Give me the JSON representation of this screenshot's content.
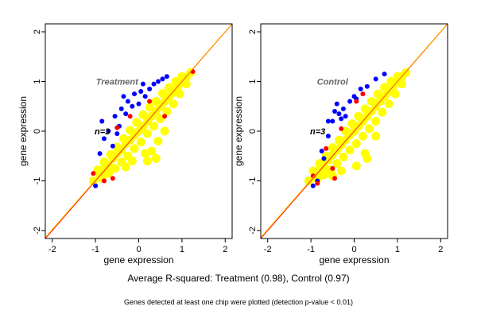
{
  "chart_data": [
    {
      "type": "scatter",
      "title": "Treatment",
      "annotation": "n=3",
      "xlabel": "gene expression",
      "ylabel": "gene expression",
      "xlim": [
        -2.16,
        2.16
      ],
      "ylim": [
        -2.16,
        2.16
      ],
      "xticks": [
        "-2",
        "-1",
        "0",
        "1",
        "2"
      ],
      "yticks": [
        "-2",
        "-1",
        "0",
        "1",
        "2"
      ],
      "grid": false,
      "colors": {
        "yellow": "#ffff00",
        "blue": "#0000ff",
        "red": "#ff0000",
        "identity_line": "#ff0000",
        "fit_line": "#ffcc00"
      },
      "series": [
        {
          "color": "#ffff00",
          "points": [
            [
              -1.05,
              -1.0
            ],
            [
              -0.9,
              -0.88
            ],
            [
              -0.8,
              -0.75
            ],
            [
              -0.7,
              -0.68
            ],
            [
              -0.6,
              -0.55
            ],
            [
              -0.5,
              -0.45
            ],
            [
              -0.4,
              -0.38
            ],
            [
              -0.3,
              -0.25
            ],
            [
              -0.2,
              -0.18
            ],
            [
              -0.1,
              -0.08
            ],
            [
              0,
              0
            ],
            [
              0.1,
              0.1
            ],
            [
              0.2,
              0.2
            ],
            [
              0.3,
              0.3
            ],
            [
              0.4,
              0.4
            ],
            [
              0.5,
              0.5
            ],
            [
              0.6,
              0.6
            ],
            [
              0.7,
              0.7
            ],
            [
              0.8,
              0.78
            ],
            [
              0.9,
              0.88
            ],
            [
              1.0,
              0.98
            ],
            [
              1.1,
              1.08
            ],
            [
              1.2,
              1.18
            ],
            [
              -0.95,
              -0.78
            ],
            [
              -0.8,
              -0.62
            ],
            [
              -0.65,
              -0.47
            ],
            [
              -0.5,
              -0.32
            ],
            [
              -0.35,
              -0.15
            ],
            [
              -0.2,
              0.02
            ],
            [
              -0.05,
              0.18
            ],
            [
              0.1,
              0.33
            ],
            [
              0.25,
              0.48
            ],
            [
              0.4,
              0.6
            ],
            [
              0.55,
              0.76
            ],
            [
              0.7,
              0.88
            ],
            [
              0.85,
              1.0
            ],
            [
              1.0,
              1.1
            ],
            [
              -0.85,
              -0.95
            ],
            [
              -0.7,
              -0.85
            ],
            [
              -0.55,
              -0.75
            ],
            [
              -0.4,
              -0.62
            ],
            [
              -0.25,
              -0.5
            ],
            [
              -0.1,
              -0.35
            ],
            [
              0.05,
              -0.22
            ],
            [
              0.2,
              -0.05
            ],
            [
              0.35,
              0.1
            ],
            [
              0.5,
              0.25
            ],
            [
              0.65,
              0.4
            ],
            [
              0.8,
              0.55
            ],
            [
              0.95,
              0.75
            ],
            [
              1.1,
              0.95
            ],
            [
              0.3,
              -0.4
            ],
            [
              0.4,
              -0.55
            ],
            [
              0.2,
              -0.6
            ],
            [
              0.6,
              0.0
            ],
            [
              0.15,
              -0.45
            ],
            [
              -0.3,
              -0.72
            ],
            [
              0.45,
              -0.2
            ],
            [
              -0.15,
              -0.6
            ]
          ]
        },
        {
          "color": "#0000ff",
          "points": [
            [
              -0.85,
              0.2
            ],
            [
              -0.8,
              -0.15
            ],
            [
              -0.7,
              0.0
            ],
            [
              -0.55,
              0.3
            ],
            [
              -0.45,
              0.1
            ],
            [
              -0.4,
              0.45
            ],
            [
              -0.3,
              0.35
            ],
            [
              -0.25,
              0.6
            ],
            [
              -0.15,
              0.5
            ],
            [
              -0.1,
              0.75
            ],
            [
              0,
              0.55
            ],
            [
              0.05,
              0.8
            ],
            [
              0.15,
              0.7
            ],
            [
              0.25,
              0.85
            ],
            [
              0.35,
              0.95
            ],
            [
              0.45,
              1.0
            ],
            [
              0.55,
              1.05
            ],
            [
              0.65,
              1.1
            ],
            [
              -0.6,
              -0.3
            ],
            [
              -0.9,
              -0.45
            ],
            [
              -1.0,
              -1.1
            ],
            [
              0.1,
              0.95
            ],
            [
              -0.35,
              0.7
            ],
            [
              -0.5,
              -0.05
            ]
          ]
        },
        {
          "color": "#ff0000",
          "points": [
            [
              -0.5,
              0.07
            ],
            [
              0.25,
              0.6
            ],
            [
              -0.8,
              -1.0
            ],
            [
              -0.6,
              -0.95
            ],
            [
              1.25,
              1.2
            ],
            [
              -1.05,
              -0.85
            ],
            [
              -0.2,
              0.3
            ],
            [
              0.6,
              0.3
            ]
          ]
        }
      ]
    },
    {
      "type": "scatter",
      "title": "Control",
      "annotation": "n=3",
      "xlabel": "gene expression",
      "ylabel": "gene expression",
      "xlim": [
        -2.16,
        2.16
      ],
      "ylim": [
        -2.16,
        2.16
      ],
      "xticks": [
        "-2",
        "-1",
        "0",
        "1",
        "2"
      ],
      "yticks": [
        "-2",
        "-1",
        "0",
        "1",
        "2"
      ],
      "grid": false,
      "colors": {
        "yellow": "#ffff00",
        "blue": "#0000ff",
        "red": "#ff0000",
        "identity_line": "#ff0000",
        "fit_line": "#ffcc00"
      },
      "series": [
        {
          "color": "#ffff00",
          "points": [
            [
              -1.05,
              -1.0
            ],
            [
              -0.9,
              -0.9
            ],
            [
              -0.8,
              -0.78
            ],
            [
              -0.7,
              -0.7
            ],
            [
              -0.6,
              -0.58
            ],
            [
              -0.5,
              -0.48
            ],
            [
              -0.4,
              -0.38
            ],
            [
              -0.3,
              -0.28
            ],
            [
              -0.2,
              -0.18
            ],
            [
              -0.1,
              -0.08
            ],
            [
              0,
              0
            ],
            [
              0.1,
              0.1
            ],
            [
              0.2,
              0.2
            ],
            [
              0.3,
              0.3
            ],
            [
              0.4,
              0.4
            ],
            [
              0.5,
              0.5
            ],
            [
              0.6,
              0.6
            ],
            [
              0.7,
              0.7
            ],
            [
              0.8,
              0.8
            ],
            [
              0.9,
              0.9
            ],
            [
              1.0,
              1.0
            ],
            [
              1.1,
              1.1
            ],
            [
              1.2,
              1.18
            ],
            [
              -0.95,
              -0.8
            ],
            [
              -0.8,
              -0.65
            ],
            [
              -0.65,
              -0.5
            ],
            [
              -0.5,
              -0.33
            ],
            [
              -0.35,
              -0.18
            ],
            [
              -0.2,
              0.0
            ],
            [
              -0.05,
              0.15
            ],
            [
              0.1,
              0.3
            ],
            [
              0.25,
              0.45
            ],
            [
              0.4,
              0.6
            ],
            [
              0.55,
              0.75
            ],
            [
              0.7,
              0.88
            ],
            [
              0.85,
              1.0
            ],
            [
              1.0,
              1.1
            ],
            [
              -0.85,
              -0.95
            ],
            [
              -0.7,
              -0.88
            ],
            [
              -0.55,
              -0.78
            ],
            [
              -0.4,
              -0.65
            ],
            [
              -0.25,
              -0.52
            ],
            [
              -0.1,
              -0.38
            ],
            [
              0.05,
              -0.25
            ],
            [
              0.2,
              -0.1
            ],
            [
              0.35,
              0.05
            ],
            [
              0.5,
              0.2
            ],
            [
              0.65,
              0.38
            ],
            [
              0.8,
              0.55
            ],
            [
              0.95,
              0.75
            ],
            [
              1.1,
              0.95
            ],
            [
              0.25,
              -0.45
            ],
            [
              0.3,
              -0.55
            ],
            [
              0.05,
              -0.7
            ],
            [
              0.5,
              -0.1
            ],
            [
              -0.3,
              -0.8
            ],
            [
              -0.5,
              -0.9
            ]
          ]
        },
        {
          "color": "#0000ff",
          "points": [
            [
              -0.7,
              -0.55
            ],
            [
              -0.75,
              -0.4
            ],
            [
              -0.6,
              -0.1
            ],
            [
              -0.5,
              0.2
            ],
            [
              -0.45,
              0.4
            ],
            [
              -0.4,
              0.55
            ],
            [
              -0.35,
              0.35
            ],
            [
              -0.3,
              0.25
            ],
            [
              -0.25,
              0.45
            ],
            [
              -0.2,
              0.3
            ],
            [
              -0.1,
              0.6
            ],
            [
              0.0,
              0.7
            ],
            [
              0.05,
              0.65
            ],
            [
              0.15,
              0.85
            ],
            [
              0.3,
              0.9
            ],
            [
              0.5,
              1.05
            ],
            [
              0.7,
              1.15
            ],
            [
              -0.6,
              0.2
            ],
            [
              -0.95,
              -1.1
            ],
            [
              -0.85,
              -1.0
            ]
          ]
        },
        {
          "color": "#ff0000",
          "points": [
            [
              -0.3,
              0.05
            ],
            [
              -0.65,
              -0.35
            ],
            [
              0.2,
              0.75
            ],
            [
              -0.85,
              -1.05
            ],
            [
              -0.45,
              -0.95
            ],
            [
              -0.5,
              -0.75
            ],
            [
              -0.95,
              -0.9
            ],
            [
              0.05,
              0.6
            ]
          ]
        }
      ]
    }
  ],
  "captions": {
    "main": "Average R-squared: Treatment (0.98), Control (0.97)",
    "note": "Genes detected at least one chip were plotted (detection p-value < 0.01)"
  }
}
